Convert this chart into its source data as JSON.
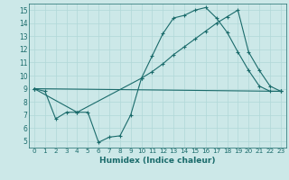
{
  "xlabel": "Humidex (Indice chaleur)",
  "xlim": [
    -0.5,
    23.5
  ],
  "ylim": [
    4.5,
    15.5
  ],
  "xticks": [
    0,
    1,
    2,
    3,
    4,
    5,
    6,
    7,
    8,
    9,
    10,
    11,
    12,
    13,
    14,
    15,
    16,
    17,
    18,
    19,
    20,
    21,
    22,
    23
  ],
  "yticks": [
    5,
    6,
    7,
    8,
    9,
    10,
    11,
    12,
    13,
    14,
    15
  ],
  "bg_color": "#cce8e8",
  "line_color": "#1a6b6b",
  "grid_color": "#b0d8d8",
  "lines": [
    {
      "x": [
        0,
        1,
        2,
        3,
        4,
        5,
        6,
        7,
        8,
        9,
        10,
        11,
        12,
        13,
        14,
        15,
        16,
        17,
        18,
        19,
        20,
        21,
        22,
        23
      ],
      "y": [
        9,
        8.8,
        6.7,
        7.2,
        7.2,
        7.2,
        4.9,
        5.3,
        5.4,
        7.0,
        9.8,
        11.5,
        13.2,
        14.4,
        14.6,
        15.0,
        15.2,
        14.4,
        13.3,
        11.8,
        10.4,
        9.2,
        8.8,
        8.8
      ]
    },
    {
      "x": [
        0,
        4,
        10,
        11,
        12,
        13,
        14,
        15,
        16,
        17,
        18,
        19,
        20,
        21,
        22,
        23
      ],
      "y": [
        9,
        7.2,
        9.8,
        10.3,
        10.9,
        11.6,
        12.2,
        12.8,
        13.4,
        14.0,
        14.5,
        15.0,
        11.8,
        10.4,
        9.2,
        8.8
      ]
    },
    {
      "x": [
        0,
        23
      ],
      "y": [
        9,
        8.8
      ]
    }
  ]
}
